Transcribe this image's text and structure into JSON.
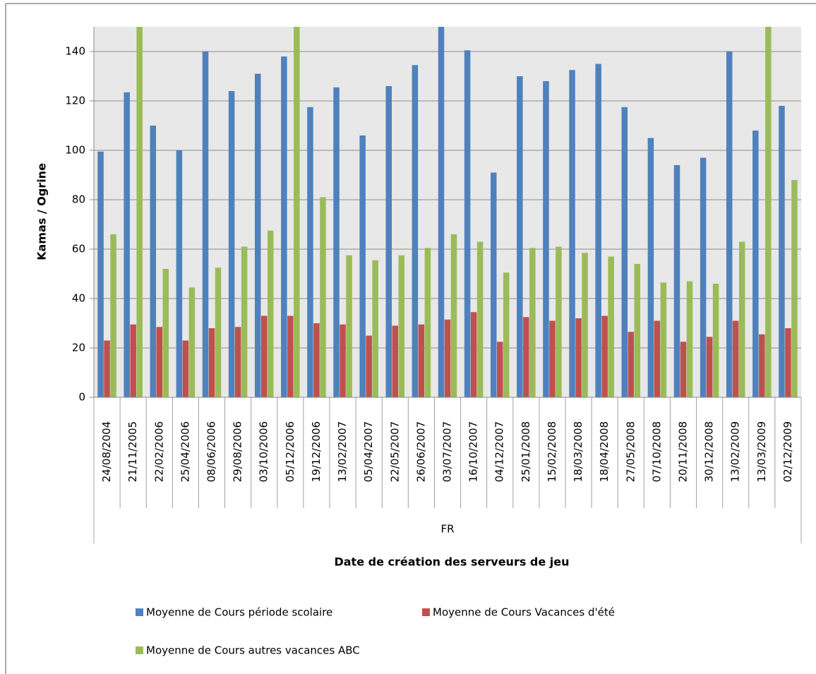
{
  "chart_data": {
    "type": "bar",
    "y_label": "Kamas / Ogrine",
    "x_label": "Date de création des serveurs de jeu",
    "x_group": "FR",
    "categories": [
      "24/08/2004",
      "21/11/2005",
      "22/02/2006",
      "25/04/2006",
      "08/06/2006",
      "29/08/2006",
      "03/10/2006",
      "05/12/2006",
      "19/12/2006",
      "13/02/2007",
      "05/04/2007",
      "22/05/2007",
      "26/06/2007",
      "03/07/2007",
      "16/10/2007",
      "04/12/2007",
      "25/01/2008",
      "15/02/2008",
      "18/03/2008",
      "18/04/2008",
      "27/05/2008",
      "07/10/2008",
      "20/11/2008",
      "30/12/2008",
      "13/02/2009",
      "13/03/2009",
      "02/12/2009"
    ],
    "series": [
      {
        "name": "Moyenne de Cours période scolaire",
        "color": "#4f81bd",
        "values": [
          99.5,
          123.5,
          110,
          100,
          140,
          124,
          131,
          138,
          117.5,
          125.5,
          106,
          126,
          134.5,
          150,
          140.5,
          91,
          130,
          128,
          132.5,
          135,
          117.5,
          105,
          94,
          97,
          140,
          108,
          118
        ]
      },
      {
        "name": "Moyenne de Cours Vacances d'été",
        "color": "#c0504d",
        "values": [
          23,
          29.5,
          28.5,
          23,
          28,
          28.5,
          33,
          33,
          30,
          29.5,
          25,
          29,
          29.5,
          31.5,
          34.5,
          22.5,
          32.5,
          31,
          32,
          33,
          26.5,
          31,
          22.5,
          24.5,
          31,
          25.5,
          28
        ]
      },
      {
        "name": "Moyenne de Cours autres vacances ABC",
        "color": "#9bbb59",
        "values": [
          66,
          150,
          52,
          44.5,
          52.5,
          61,
          67.5,
          150,
          81,
          57.5,
          55.5,
          57.5,
          60.5,
          66,
          63,
          50.5,
          60.5,
          61,
          58.5,
          57,
          54,
          46.5,
          47,
          46,
          63,
          150,
          88
        ]
      }
    ],
    "ylim": [
      0,
      150
    ],
    "yticks": [
      0,
      20,
      40,
      60,
      80,
      100,
      120,
      140
    ],
    "grid": true
  }
}
